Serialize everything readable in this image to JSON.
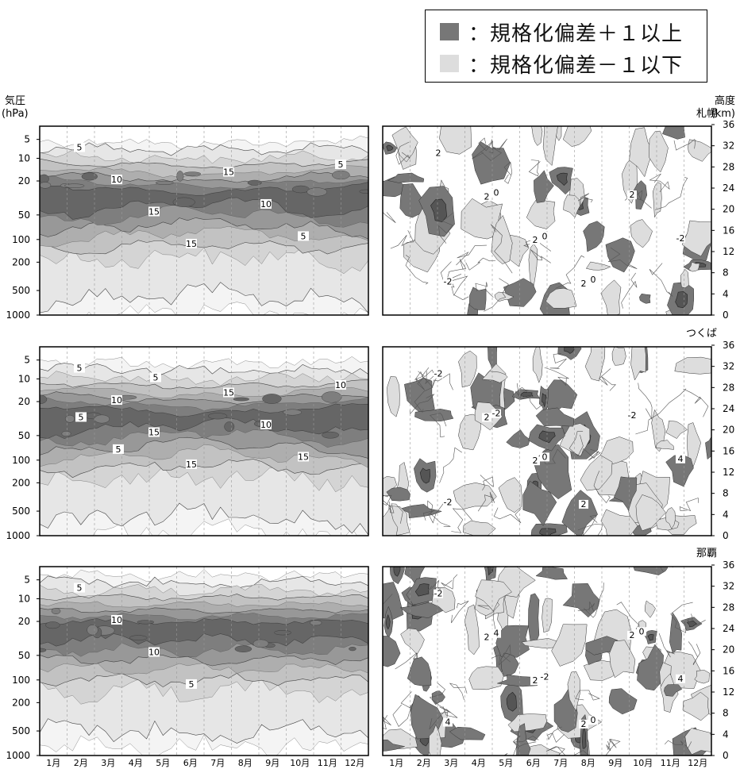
{
  "legend": {
    "items": [
      {
        "swatch_color": "#777777",
        "text": "：規格化偏差＋１以上"
      },
      {
        "swatch_color": "#dddddd",
        "text": "：規格化偏差－１以下"
      }
    ]
  },
  "chart_data": {
    "type": "heatmap",
    "left_axis": {
      "title": [
        "気圧",
        "(hPa)"
      ],
      "ticks": [
        "5",
        "10",
        "20",
        "50",
        "100",
        "200",
        "500",
        "1000"
      ]
    },
    "right_axis": {
      "title": [
        "高度",
        "(km)"
      ],
      "ticks": [
        "36",
        "32",
        "28",
        "24",
        "20",
        "16",
        "12",
        "8",
        "4",
        "0"
      ]
    },
    "months": [
      "1月",
      "2月",
      "3月",
      "4月",
      "5月",
      "6月",
      "7月",
      "8月",
      "9月",
      "10月",
      "11月",
      "12月"
    ],
    "stations": [
      "札幌",
      "つくば",
      "那覇"
    ],
    "left_contour_labels": [
      [
        "5",
        "10",
        "15",
        "15",
        "15",
        "10",
        "5",
        "5"
      ],
      [
        "5",
        "10",
        "15",
        "15",
        "15",
        "10",
        "15",
        "10",
        "5",
        "5",
        "5"
      ],
      [
        "5",
        "10",
        "10",
        "5"
      ]
    ],
    "right_contour_labels": [
      [
        "2",
        "2",
        "2",
        "2",
        "2",
        "-2",
        "-2",
        "0",
        "0",
        "0"
      ],
      [
        "-2",
        "2",
        "2",
        "2",
        "-2",
        "4",
        "-2",
        "-2",
        "0"
      ],
      [
        "-2",
        "2",
        "2",
        "2",
        "2",
        "4",
        "4",
        "4",
        "-2",
        "0",
        "0"
      ]
    ],
    "colors": {
      "positive_anomaly": "#777777",
      "negative_anomaly": "#dddddd",
      "ozone_shades": [
        "#f4f4f4",
        "#e6e6e6",
        "#d4d4d4",
        "#c2c2c2",
        "#aeaeae",
        "#989898",
        "#7e7e7e",
        "#666666"
      ]
    }
  }
}
